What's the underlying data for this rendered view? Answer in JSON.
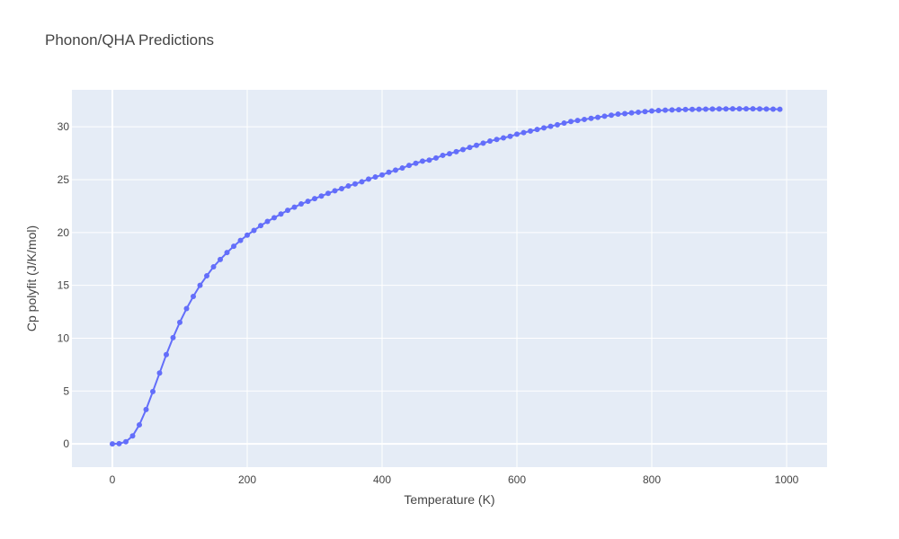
{
  "chart_data": {
    "type": "line",
    "title": "Phonon/QHA Predictions",
    "xlabel": "Temperature (K)",
    "ylabel": "Cp polyfit (J/K/mol)",
    "xlim": [
      -60,
      1060
    ],
    "ylim": [
      -2.2,
      33.5
    ],
    "xticks": [
      0,
      200,
      400,
      600,
      800,
      1000
    ],
    "yticks": [
      0,
      5,
      10,
      15,
      20,
      25,
      30
    ],
    "grid": true,
    "mode": "lines+markers",
    "colors": {
      "series": "#636efa",
      "plot_bg": "#e5ecf6",
      "grid": "#ffffff"
    },
    "series": [
      {
        "x": [
          0,
          10,
          20,
          30,
          40,
          50,
          60,
          70,
          80,
          90,
          100,
          110,
          120,
          130,
          140,
          150,
          160,
          170,
          180,
          190,
          200,
          210,
          220,
          230,
          240,
          250,
          260,
          270,
          280,
          290,
          300,
          310,
          320,
          330,
          340,
          350,
          360,
          370,
          380,
          390,
          400,
          410,
          420,
          430,
          440,
          450,
          460,
          470,
          480,
          490,
          500,
          510,
          520,
          530,
          540,
          550,
          560,
          570,
          580,
          590,
          600,
          610,
          620,
          630,
          640,
          650,
          660,
          670,
          680,
          690,
          700,
          710,
          720,
          730,
          740,
          750,
          760,
          770,
          780,
          790,
          800,
          810,
          820,
          830,
          840,
          850,
          860,
          870,
          880,
          890,
          900,
          910,
          920,
          930,
          940,
          950,
          960,
          970,
          980,
          990
        ],
        "y": [
          0.0,
          0.02,
          0.2,
          0.75,
          1.8,
          3.25,
          4.95,
          6.7,
          8.45,
          10.05,
          11.5,
          12.8,
          13.95,
          15.0,
          15.9,
          16.75,
          17.45,
          18.1,
          18.7,
          19.25,
          19.75,
          20.2,
          20.65,
          21.05,
          21.4,
          21.75,
          22.1,
          22.4,
          22.7,
          22.95,
          23.2,
          23.45,
          23.7,
          23.95,
          24.15,
          24.4,
          24.6,
          24.8,
          25.05,
          25.25,
          25.45,
          25.7,
          25.9,
          26.1,
          26.35,
          26.55,
          26.75,
          26.85,
          27.05,
          27.3,
          27.45,
          27.65,
          27.85,
          28.05,
          28.25,
          28.45,
          28.65,
          28.8,
          28.95,
          29.1,
          29.3,
          29.45,
          29.6,
          29.75,
          29.9,
          30.05,
          30.2,
          30.35,
          30.5,
          30.6,
          30.7,
          30.8,
          30.9,
          31.0,
          31.1,
          31.2,
          31.25,
          31.32,
          31.38,
          31.44,
          31.5,
          31.54,
          31.58,
          31.6,
          31.62,
          31.64,
          31.65,
          31.66,
          31.67,
          31.68,
          31.69,
          31.69,
          31.7,
          31.7,
          31.7,
          31.7,
          31.69,
          31.68,
          31.67,
          31.66
        ]
      }
    ]
  }
}
